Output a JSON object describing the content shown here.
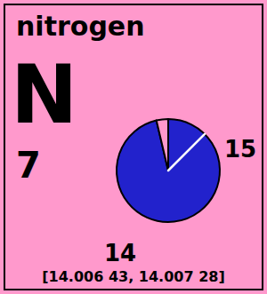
{
  "chart_data": {
    "type": "pie",
    "title": "nitrogen",
    "categories": [
      "14",
      "15"
    ],
    "values": [
      0.9632,
      0.0368
    ],
    "colors": [
      "#2222CC",
      "#FF99CC"
    ],
    "annotations": [
      "N",
      "7",
      "[14.006 43, 14.007 28]"
    ]
  }
}
